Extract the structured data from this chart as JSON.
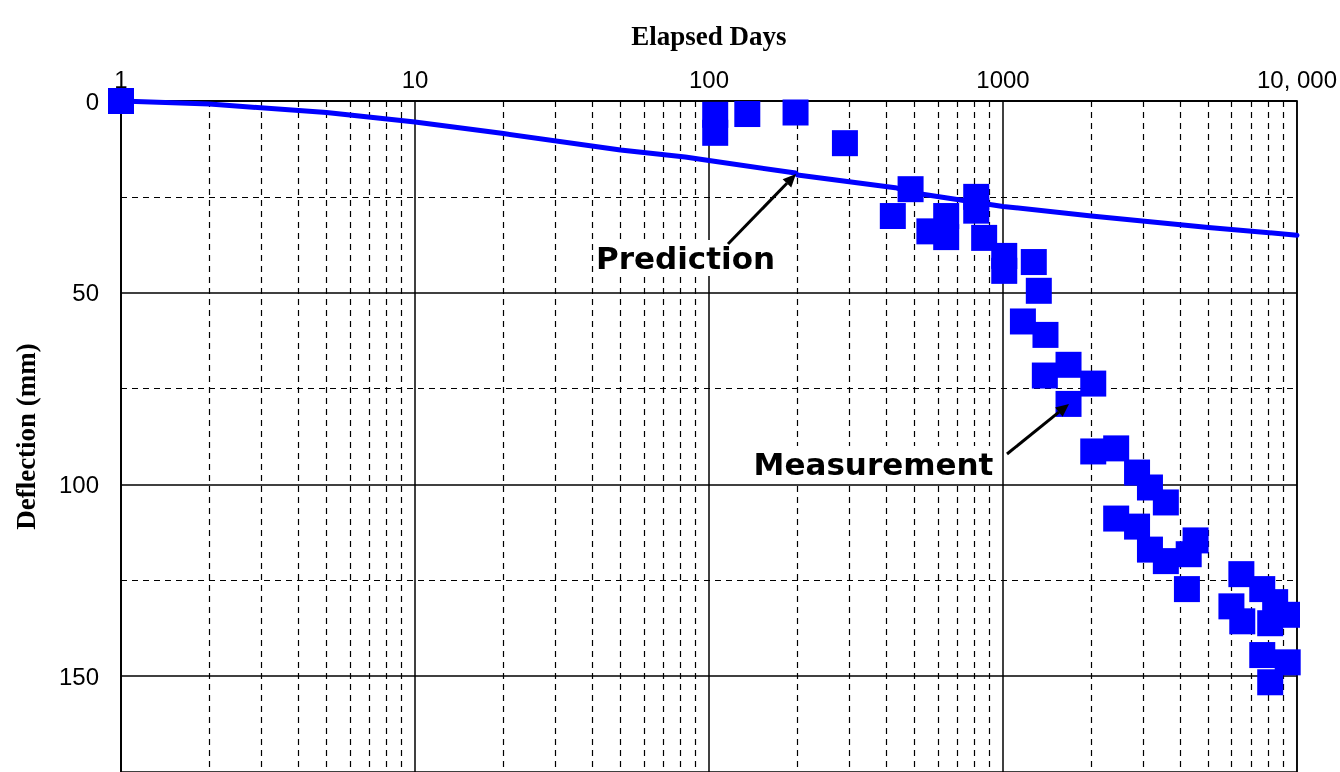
{
  "chart_data": {
    "type": "scatter",
    "xlabel": "Elapsed Days",
    "ylabel": "Deflection (mm)",
    "log": "x",
    "grid": true,
    "marker": "square",
    "xlim": [
      1,
      10000
    ],
    "ylim": [
      175,
      0
    ],
    "xticks": [
      1,
      {
        "value": 2,
        "label": null
      },
      {
        "value": 3,
        "label": null
      },
      {
        "value": 4,
        "label": null
      },
      {
        "value": 5,
        "label": null
      },
      {
        "value": 6,
        "label": null
      },
      {
        "value": 7,
        "label": null
      },
      {
        "value": 8,
        "label": null
      },
      {
        "value": 9,
        "label": null
      },
      10,
      {
        "value": 20,
        "label": null
      },
      {
        "value": 30,
        "label": null
      },
      {
        "value": 40,
        "label": null
      },
      {
        "value": 50,
        "label": null
      },
      {
        "value": 60,
        "label": null
      },
      {
        "value": 70,
        "label": null
      },
      {
        "value": 80,
        "label": null
      },
      {
        "value": 90,
        "label": null
      },
      100,
      {
        "value": 200,
        "label": null
      },
      {
        "value": 300,
        "label": null
      },
      {
        "value": 400,
        "label": null
      },
      {
        "value": 500,
        "label": null
      },
      {
        "value": 600,
        "label": null
      },
      {
        "value": 700,
        "label": null
      },
      {
        "value": 800,
        "label": null
      },
      {
        "value": 900,
        "label": null
      },
      1000,
      {
        "value": 2000,
        "label": null
      },
      {
        "value": 3000,
        "label": null
      },
      {
        "value": 4000,
        "label": null
      },
      {
        "value": 5000,
        "label": null
      },
      {
        "value": 6000,
        "label": null
      },
      {
        "value": 7000,
        "label": null
      },
      {
        "value": 8000,
        "label": null
      },
      {
        "value": 9000,
        "label": null
      },
      {
        "value": 10000,
        "label": "10, 000"
      }
    ],
    "yticks": [
      0,
      {
        "value": 25,
        "label": null
      },
      50,
      {
        "value": 75,
        "label": null
      },
      100,
      {
        "value": 125,
        "label": null
      },
      150
    ],
    "series": [
      {
        "type": "line",
        "color": "#0000ff",
        "marker": "none",
        "line_style": "solid",
        "x": [
          1,
          2,
          5,
          10,
          20,
          50,
          83,
          100,
          197,
          200,
          430,
          500,
          1000,
          2000,
          5000,
          10000
        ],
        "values": [
          0,
          0.8,
          3,
          5.5,
          8.5,
          12.8,
          14.6,
          15.5,
          18.8,
          19.3,
          22.6,
          24,
          27.5,
          30,
          33,
          35
        ]
      },
      {
        "color": "#0000ff",
        "x": [
          1,
          105,
          105,
          135,
          197,
          290,
          422,
          485,
          562,
          641,
          641,
          811,
          811,
          863,
          1010,
          1010,
          1273,
          1324,
          1169,
          1395,
          1388,
          1671,
          2028,
          1671,
          2028,
          2427,
          2858,
          3162,
          3581,
          2427,
          2858,
          3162,
          3581,
          4520,
          4283,
          4224,
          6470,
          5985,
          6516,
          7620,
          8430,
          9250,
          8110,
          7620,
          9300,
          8110
        ],
        "values": [
          0,
          3.6,
          8.3,
          3.4,
          3,
          11,
          30,
          23,
          34,
          30,
          35.5,
          25,
          28.6,
          35.7,
          40.4,
          44.3,
          42,
          49.5,
          57.5,
          61,
          71.6,
          68.8,
          73.7,
          79,
          91.4,
          90.6,
          96.9,
          100.8,
          104.7,
          108.9,
          111,
          117,
          120,
          114.6,
          118.2,
          127.3,
          123.4,
          131.8,
          135.7,
          127.3,
          130.7,
          134,
          136.2,
          144.5,
          146.4,
          151.6
        ]
      }
    ],
    "annotations": [
      {
        "text": "Prediction",
        "x": 197,
        "y": 19
      },
      {
        "text": "Measurement",
        "x": 1671,
        "y": 79
      }
    ]
  }
}
